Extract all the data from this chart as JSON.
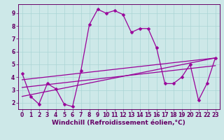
{
  "xlabel": "Windchill (Refroidissement éolien,°C)",
  "background_color": "#cde8e8",
  "line_color": "#990099",
  "xlim": [
    -0.5,
    23.5
  ],
  "ylim": [
    1.5,
    9.7
  ],
  "xticks": [
    0,
    1,
    2,
    3,
    4,
    5,
    6,
    7,
    8,
    9,
    10,
    11,
    12,
    13,
    14,
    15,
    16,
    17,
    18,
    19,
    20,
    21,
    22,
    23
  ],
  "yticks": [
    2,
    3,
    4,
    5,
    6,
    7,
    8,
    9
  ],
  "main_series_x": [
    0,
    1,
    2,
    3,
    4,
    5,
    6,
    7,
    8,
    9,
    10,
    11,
    12,
    13,
    14,
    15,
    16,
    17,
    18,
    19,
    20,
    21,
    22,
    23
  ],
  "main_series_y": [
    4.3,
    2.5,
    1.9,
    3.5,
    3.1,
    1.9,
    1.7,
    4.5,
    8.1,
    9.3,
    9.0,
    9.2,
    8.9,
    7.5,
    7.8,
    7.8,
    6.3,
    3.5,
    3.5,
    4.0,
    5.0,
    2.2,
    3.5,
    5.5
  ],
  "trend1_x": [
    0,
    23
  ],
  "trend1_y": [
    3.8,
    5.5
  ],
  "trend2_x": [
    0,
    23
  ],
  "trend2_y": [
    3.2,
    4.9
  ],
  "trend3_x": [
    0,
    23
  ],
  "trend3_y": [
    2.5,
    5.5
  ],
  "grid_color": "#aad4d4",
  "marker": "D",
  "markersize": 2.5,
  "linewidth": 0.9,
  "font_color": "#660066",
  "xlabel_fontsize": 6.5,
  "tick_fontsize": 5.5
}
